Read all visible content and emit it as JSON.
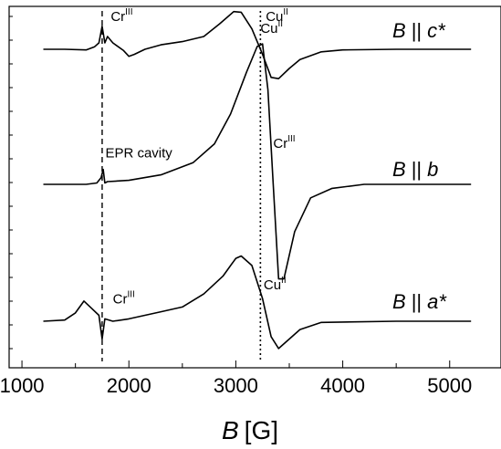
{
  "chart_data": {
    "type": "line",
    "xlabel_var": "B",
    "xlabel_unit": "[G]",
    "xlim": [
      880,
      5480
    ],
    "xticks": [
      1000,
      2000,
      3000,
      4000,
      5000
    ],
    "ylabel": "",
    "y_tick_labels": false,
    "grid": false,
    "series": [
      {
        "label_var": "B",
        "label_rel": "||",
        "label_axis": "c*",
        "baseline": 0.94,
        "points": [
          [
            1200,
            0.94
          ],
          [
            1400,
            0.94
          ],
          [
            1600,
            0.935
          ],
          [
            1680,
            0.96
          ],
          [
            1720,
            0.99
          ],
          [
            1750,
            1.12
          ],
          [
            1775,
            0.99
          ],
          [
            1800,
            1.04
          ],
          [
            1850,
            0.99
          ],
          [
            1950,
            0.93
          ],
          [
            2000,
            0.885
          ],
          [
            2050,
            0.9
          ],
          [
            2150,
            0.94
          ],
          [
            2300,
            0.975
          ],
          [
            2500,
            1.0
          ],
          [
            2700,
            1.04
          ],
          [
            2850,
            1.14
          ],
          [
            2980,
            1.235
          ],
          [
            3050,
            1.23
          ],
          [
            3150,
            1.1
          ],
          [
            3250,
            0.9
          ],
          [
            3330,
            0.72
          ],
          [
            3400,
            0.71
          ],
          [
            3500,
            0.79
          ],
          [
            3600,
            0.86
          ],
          [
            3800,
            0.92
          ],
          [
            4000,
            0.935
          ],
          [
            4500,
            0.94
          ],
          [
            5200,
            0.94
          ]
        ]
      },
      {
        "label_var": "B",
        "label_rel": "||",
        "label_axis": "b",
        "baseline": 0.0,
        "points": [
          [
            1200,
            0.0
          ],
          [
            1600,
            0.0
          ],
          [
            1700,
            0.01
          ],
          [
            1740,
            0.05
          ],
          [
            1760,
            0.11
          ],
          [
            1775,
            0.01
          ],
          [
            1800,
            0.02
          ],
          [
            2000,
            0.03
          ],
          [
            2300,
            0.07
          ],
          [
            2600,
            0.16
          ],
          [
            2800,
            0.3
          ],
          [
            2950,
            0.52
          ],
          [
            3100,
            0.83
          ],
          [
            3200,
            1.02
          ],
          [
            3250,
            1.04
          ],
          [
            3300,
            0.7
          ],
          [
            3350,
            0.0
          ],
          [
            3400,
            -0.7
          ],
          [
            3450,
            -0.7
          ],
          [
            3550,
            -0.35
          ],
          [
            3700,
            -0.1
          ],
          [
            3900,
            -0.03
          ],
          [
            4200,
            0.0
          ],
          [
            5200,
            0.0
          ]
        ]
      },
      {
        "label_var": "B",
        "label_rel": "||",
        "label_axis": "a*",
        "baseline": -0.95,
        "points": [
          [
            1200,
            -0.95
          ],
          [
            1400,
            -0.94
          ],
          [
            1500,
            -0.88
          ],
          [
            1580,
            -0.78
          ],
          [
            1650,
            -0.84
          ],
          [
            1720,
            -0.9
          ],
          [
            1750,
            -1.1
          ],
          [
            1775,
            -0.93
          ],
          [
            1850,
            -0.95
          ],
          [
            2000,
            -0.93
          ],
          [
            2300,
            -0.87
          ],
          [
            2500,
            -0.83
          ],
          [
            2700,
            -0.72
          ],
          [
            2880,
            -0.57
          ],
          [
            3000,
            -0.42
          ],
          [
            3050,
            -0.4
          ],
          [
            3150,
            -0.48
          ],
          [
            3250,
            -0.76
          ],
          [
            3330,
            -1.08
          ],
          [
            3400,
            -1.18
          ],
          [
            3500,
            -1.1
          ],
          [
            3600,
            -1.02
          ],
          [
            3800,
            -0.96
          ],
          [
            4500,
            -0.95
          ],
          [
            5200,
            -0.95
          ]
        ]
      }
    ],
    "reference_lines": [
      {
        "x": 1750,
        "style": "dashed"
      },
      {
        "x": 3230,
        "style": "dotted"
      }
    ],
    "annotations": [
      {
        "base": "Cr",
        "sup": "III",
        "x": 1830,
        "y": 1.16
      },
      {
        "base": "Cu",
        "sup": "II",
        "x": 3280,
        "y": 1.16
      },
      {
        "base": "Cu",
        "sup": "II",
        "x": 3230,
        "y": 1.12
      },
      {
        "base": "Cr",
        "sup": "III",
        "x": 3350,
        "y": 0.27
      },
      {
        "base": "EPR cavity",
        "sup": "",
        "x": 1780,
        "y": 0.2
      },
      {
        "base": "Cr",
        "sup": "III",
        "x": 1850,
        "y": -0.8
      },
      {
        "base": "Cu",
        "sup": "II",
        "x": 3260,
        "y": -0.68
      }
    ]
  }
}
